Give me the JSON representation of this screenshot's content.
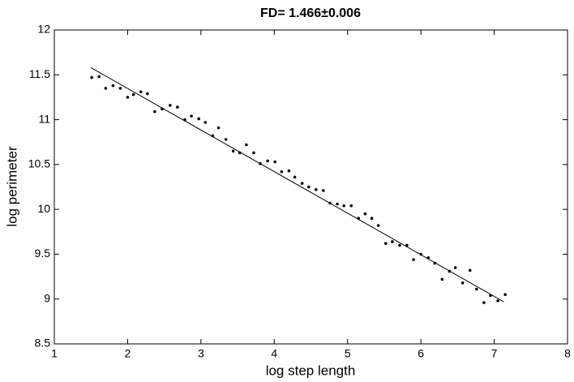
{
  "chart_data": {
    "type": "scatter",
    "title": "FD= 1.466±0.006",
    "x_label": "log step length",
    "y_label": "log perimeter",
    "xlim": [
      1,
      8
    ],
    "ylim": [
      8.5,
      12
    ],
    "xticks": [
      1,
      2,
      3,
      4,
      5,
      6,
      7,
      8
    ],
    "yticks": [
      8.5,
      9,
      9.5,
      10,
      10.5,
      11,
      11.5,
      12
    ],
    "series": [
      {
        "name": "data",
        "color": "#000000",
        "mode": "markers",
        "x": [
          1.51,
          1.61,
          1.7,
          1.8,
          1.9,
          2.0,
          2.08,
          2.18,
          2.27,
          2.37,
          2.47,
          2.58,
          2.68,
          2.78,
          2.87,
          2.97,
          3.06,
          3.16,
          3.24,
          3.34,
          3.44,
          3.53,
          3.62,
          3.72,
          3.81,
          3.91,
          4.01,
          4.1,
          4.2,
          4.28,
          4.38,
          4.47,
          4.57,
          4.67,
          4.76,
          4.86,
          4.95,
          5.05,
          5.15,
          5.24,
          5.33,
          5.42,
          5.52,
          5.61,
          5.71,
          5.81,
          5.9,
          6.0,
          6.1,
          6.19,
          6.29,
          6.39,
          6.47,
          6.57,
          6.67,
          6.76,
          6.86,
          6.95,
          7.05,
          7.15
        ],
        "values": [
          11.47,
          11.48,
          11.35,
          11.38,
          11.35,
          11.25,
          11.28,
          11.31,
          11.29,
          11.09,
          11.12,
          11.16,
          11.14,
          11.0,
          11.04,
          11.01,
          10.97,
          10.82,
          10.91,
          10.78,
          10.65,
          10.63,
          10.72,
          10.63,
          10.51,
          10.54,
          10.53,
          10.42,
          10.43,
          10.36,
          10.29,
          10.25,
          10.22,
          10.21,
          10.07,
          10.06,
          10.04,
          10.04,
          9.9,
          9.95,
          9.9,
          9.82,
          9.62,
          9.64,
          9.6,
          9.6,
          9.44,
          9.5,
          9.46,
          9.4,
          9.22,
          9.31,
          9.35,
          9.18,
          9.32,
          9.11,
          8.96,
          9.04,
          8.98,
          9.05
        ]
      },
      {
        "name": "fit",
        "color": "#000000",
        "mode": "line",
        "x": [
          1.5,
          7.13
        ],
        "values": [
          11.58,
          8.97
        ]
      }
    ]
  }
}
